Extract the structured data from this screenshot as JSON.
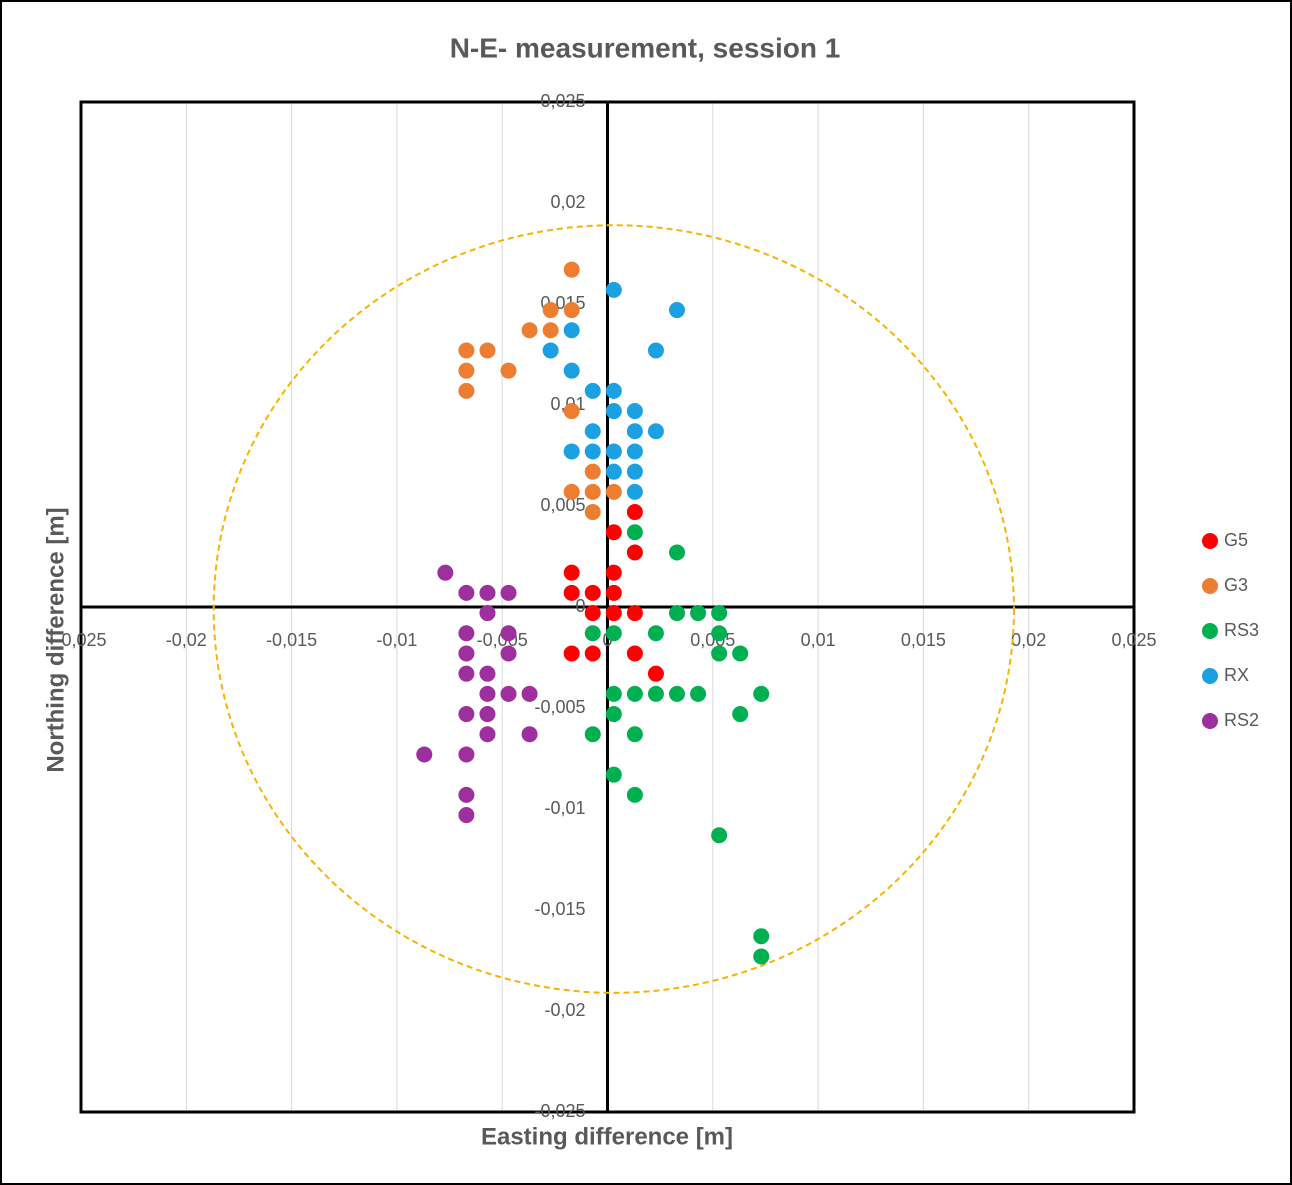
{
  "chart_data": {
    "type": "scatter",
    "title": "N-E- measurement, session 1",
    "x_label": "Easting difference [m]",
    "y_label": "Northing difference  [m]",
    "xlim": [
      -0.025,
      0.025
    ],
    "ylim": [
      -0.025,
      0.025
    ],
    "xticks": [
      {
        "value": -0.025,
        "label": "-0,025"
      },
      {
        "value": -0.02,
        "label": "-0,02"
      },
      {
        "value": -0.015,
        "label": "-0,015"
      },
      {
        "value": -0.01,
        "label": "-0,01"
      },
      {
        "value": -0.005,
        "label": "-0,005"
      },
      0,
      {
        "value": 0.005,
        "label": "0,005"
      },
      {
        "value": 0.01,
        "label": "0,01"
      },
      {
        "value": 0.015,
        "label": "0,015"
      },
      {
        "value": 0.02,
        "label": "0,02"
      },
      {
        "value": 0.025,
        "label": "0,025"
      }
    ],
    "yticks": [
      {
        "value": -0.025,
        "label": "-0,025"
      },
      {
        "value": -0.02,
        "label": "-0,02"
      },
      {
        "value": -0.015,
        "label": "-0,015"
      },
      {
        "value": -0.01,
        "label": "-0,01"
      },
      {
        "value": -0.005,
        "label": "-0,005"
      },
      0,
      {
        "value": 0.005,
        "label": "0,005"
      },
      {
        "value": 0.01,
        "label": "0,01"
      },
      {
        "value": 0.015,
        "label": "0,015"
      },
      {
        "value": 0.02,
        "label": "0,02"
      },
      {
        "value": 0.025,
        "label": "0,025"
      }
    ],
    "grid": "x",
    "legend": "right",
    "circle": {
      "color": "#f5b400",
      "center": [
        0.0003,
        -0.0001
      ],
      "radius": 0.019
    },
    "series": [
      {
        "name": "G5",
        "color": "#ff0000",
        "x": [
          0.0013,
          0.0003,
          0.0013,
          -0.0017,
          0.0003,
          -0.0017,
          -0.0007,
          0.0003,
          -0.0007,
          0.0003,
          0.0013,
          -0.0017,
          -0.0007,
          0.0013,
          0.0023
        ],
        "values": [
          0.0047,
          0.0037,
          0.0027,
          0.0017,
          0.0017,
          0.0007,
          0.0007,
          0.0007,
          -0.0003,
          -0.0003,
          -0.0003,
          -0.0023,
          -0.0023,
          -0.0023,
          -0.0033
        ]
      },
      {
        "name": "G3",
        "color": "#ed7d31",
        "x": [
          -0.0017,
          -0.0027,
          -0.0017,
          -0.0037,
          -0.0027,
          -0.0067,
          -0.0057,
          -0.0067,
          -0.0047,
          -0.0067,
          -0.0017,
          -0.0007,
          -0.0017,
          -0.0007,
          0.0003,
          -0.0007
        ],
        "values": [
          0.0167,
          0.0147,
          0.0147,
          0.0137,
          0.0137,
          0.0127,
          0.0127,
          0.0117,
          0.0117,
          0.0107,
          0.0097,
          0.0067,
          0.0057,
          0.0057,
          0.0057,
          0.0047
        ]
      },
      {
        "name": "RS3",
        "color": "#00b050",
        "x": [
          0.0013,
          0.0033,
          0.0033,
          0.0043,
          0.0053,
          -0.0007,
          0.0003,
          0.0023,
          0.0053,
          0.0053,
          0.0063,
          0.0003,
          0.0013,
          0.0023,
          0.0033,
          0.0043,
          0.0073,
          0.0003,
          0.0063,
          -0.0007,
          0.0013,
          0.0003,
          0.0013,
          0.0053,
          0.0073,
          0.0073
        ],
        "values": [
          0.0037,
          0.0027,
          -0.0003,
          -0.0003,
          -0.0003,
          -0.0013,
          -0.0013,
          -0.0013,
          -0.0013,
          -0.0023,
          -0.0023,
          -0.0043,
          -0.0043,
          -0.0043,
          -0.0043,
          -0.0043,
          -0.0043,
          -0.0053,
          -0.0053,
          -0.0063,
          -0.0063,
          -0.0083,
          -0.0093,
          -0.0113,
          -0.0163,
          -0.0173
        ]
      },
      {
        "name": "RX",
        "color": "#1ba1e2",
        "x": [
          0.0003,
          0.0033,
          -0.0017,
          -0.0027,
          0.0023,
          -0.0017,
          -0.0007,
          0.0003,
          0.0003,
          0.0013,
          -0.0007,
          0.0013,
          0.0023,
          -0.0017,
          -0.0007,
          0.0003,
          0.0013,
          0.0003,
          0.0013,
          0.0013
        ],
        "values": [
          0.0157,
          0.0147,
          0.0137,
          0.0127,
          0.0127,
          0.0117,
          0.0107,
          0.0107,
          0.0097,
          0.0097,
          0.0087,
          0.0087,
          0.0087,
          0.0077,
          0.0077,
          0.0077,
          0.0077,
          0.0067,
          0.0067,
          0.0057
        ]
      },
      {
        "name": "RS2",
        "color": "#9e2f9e",
        "x": [
          -0.0077,
          -0.0067,
          -0.0057,
          -0.0047,
          -0.0057,
          -0.0067,
          -0.0047,
          -0.0067,
          -0.0047,
          -0.0067,
          -0.0057,
          -0.0057,
          -0.0047,
          -0.0037,
          -0.0067,
          -0.0057,
          -0.0057,
          -0.0037,
          -0.0087,
          -0.0067,
          -0.0067,
          -0.0067
        ],
        "values": [
          0.0017,
          0.0007,
          0.0007,
          0.0007,
          -0.0003,
          -0.0013,
          -0.0013,
          -0.0023,
          -0.0023,
          -0.0033,
          -0.0033,
          -0.0043,
          -0.0043,
          -0.0043,
          -0.0053,
          -0.0053,
          -0.0063,
          -0.0063,
          -0.0073,
          -0.0073,
          -0.0093,
          -0.0103
        ]
      }
    ]
  }
}
